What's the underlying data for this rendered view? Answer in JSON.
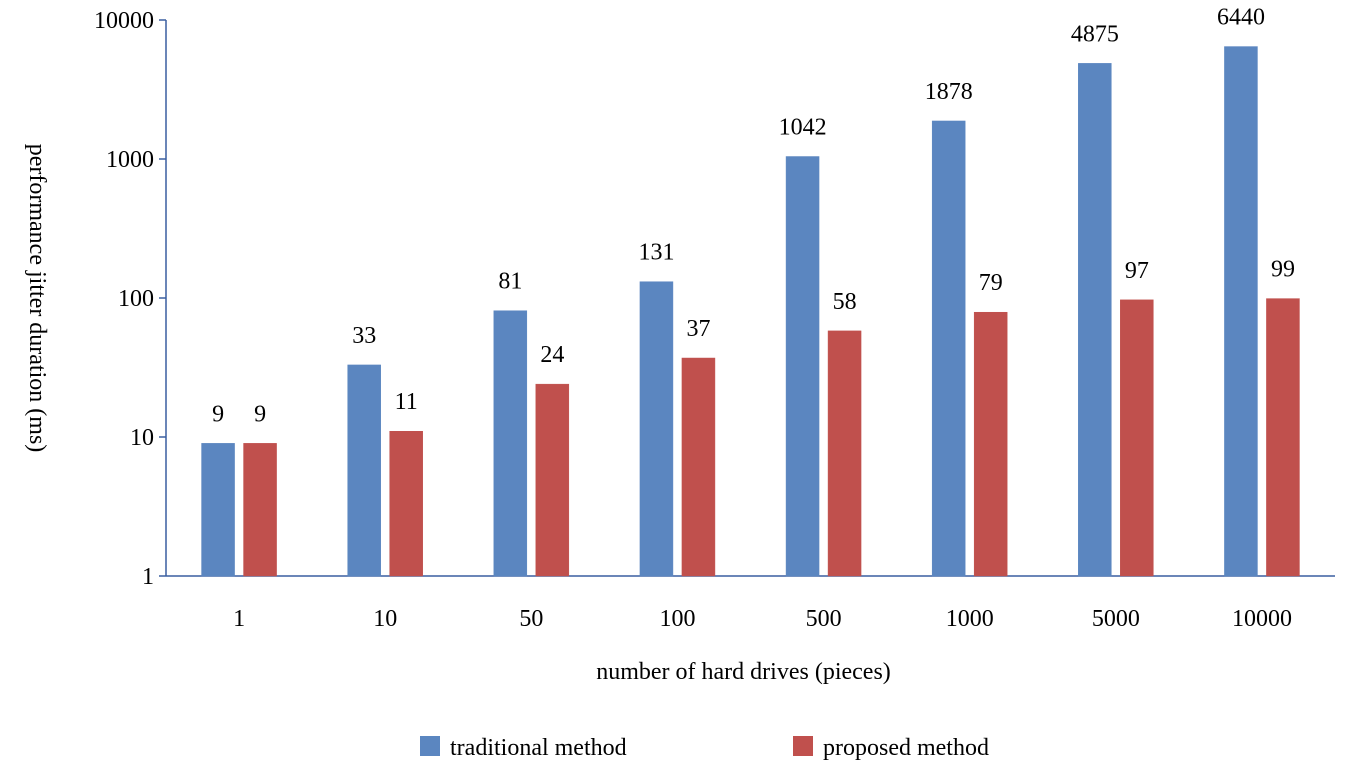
{
  "chart_data": {
    "type": "bar",
    "title": "",
    "xlabel": "number of hard drives (pieces)",
    "ylabel": "performance jitter duration (ms)",
    "yscale": "log",
    "ylim": [
      1,
      10000
    ],
    "yticks": [
      "1",
      "10",
      "100",
      "1000",
      "10000"
    ],
    "categories": [
      "1",
      "10",
      "50",
      "100",
      "500",
      "1000",
      "5000",
      "10000"
    ],
    "series": [
      {
        "name": "traditional method",
        "color": "#5B86C0",
        "values": [
          9,
          33,
          81,
          131,
          1042,
          1878,
          4875,
          6440
        ],
        "labels": [
          "9",
          "33",
          "81",
          "131",
          "1042",
          "1878",
          "4875",
          "6440"
        ]
      },
      {
        "name": "proposed method",
        "color": "#C0504D",
        "values": [
          9,
          11,
          24,
          37,
          58,
          79,
          97,
          99
        ],
        "labels": [
          "9",
          "11",
          "24",
          "37",
          "58",
          "79",
          "97",
          "99"
        ]
      }
    ],
    "grid": false,
    "legend_position": "bottom",
    "axis_color": "#3A5FA0"
  }
}
